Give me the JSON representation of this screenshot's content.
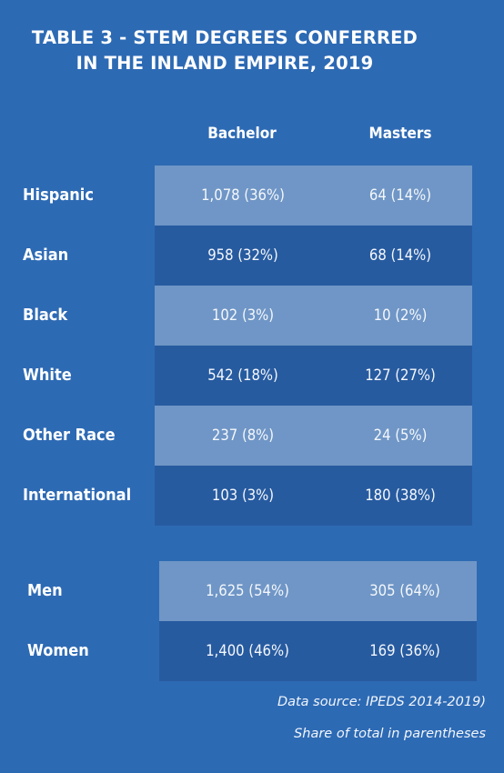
{
  "title": {
    "line1": "TABLE 3 - STEM DEGREES CONFERRED",
    "line2": "IN THE INLAND EMPIRE, 2019"
  },
  "columns": [
    "Bachelor",
    "Masters"
  ],
  "race_rows": [
    {
      "label": "Hispanic",
      "bachelor": "1,078 (36%)",
      "masters": "64 (14%)"
    },
    {
      "label": "Asian",
      "bachelor": "958 (32%)",
      "masters": "68 (14%)"
    },
    {
      "label": "Black",
      "bachelor": "102 (3%)",
      "masters": "10 (2%)"
    },
    {
      "label": "White",
      "bachelor": "542 (18%)",
      "masters": "127 (27%)"
    },
    {
      "label": "Other Race",
      "bachelor": "237 (8%)",
      "masters": "24 (5%)"
    },
    {
      "label": "International",
      "bachelor": "103 (3%)",
      "masters": "180 (38%)"
    }
  ],
  "gender_rows": [
    {
      "label": "Men",
      "bachelor": "1,625 (54%)",
      "masters": "305 (64%)"
    },
    {
      "label": "Women",
      "bachelor": "1,400 (46%)",
      "masters": "169 (36%)"
    }
  ],
  "footnotes": {
    "source": "Data source: IPEDS 2014-2019)",
    "note": "Share of total in parentheses"
  },
  "colors": {
    "background": "#2d6ab4",
    "row_light": "#6f96c6",
    "row_dark": "#275ba0"
  }
}
